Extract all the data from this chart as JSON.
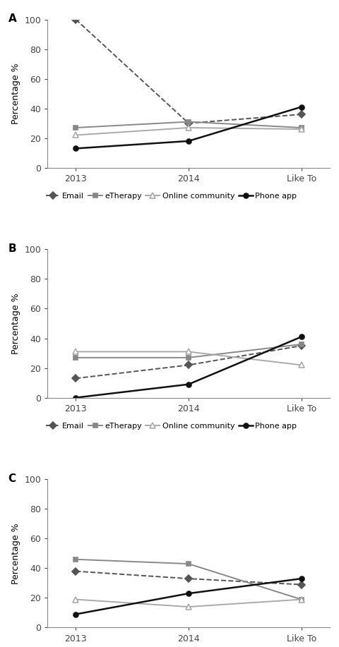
{
  "panels": [
    {
      "label": "A",
      "series": {
        "Email": [
          100,
          30,
          36
        ],
        "eTherapy": [
          27,
          31,
          27
        ],
        "Online community": [
          22,
          27,
          26
        ],
        "Phone app": [
          13,
          18,
          41
        ]
      }
    },
    {
      "label": "B",
      "series": {
        "Email": [
          13,
          22,
          35
        ],
        "eTherapy": [
          27,
          27,
          36
        ],
        "Online community": [
          31,
          31,
          22
        ],
        "Phone app": [
          0,
          9,
          41
        ]
      }
    },
    {
      "label": "C",
      "series": {
        "Email": [
          38,
          33,
          29
        ],
        "eTherapy": [
          46,
          43,
          19
        ],
        "Online community": [
          19,
          14,
          19
        ],
        "Phone app": [
          9,
          23,
          33
        ]
      }
    }
  ],
  "x_labels": [
    "2013",
    "2014",
    "Like To"
  ],
  "x_positions": [
    0,
    1,
    2
  ],
  "ylim": [
    0,
    100
  ],
  "yticks": [
    0,
    20,
    40,
    60,
    80,
    100
  ],
  "ylabel": "Percentage %",
  "series_styles": {
    "Email": {
      "color": "#555555",
      "linestyle": "--",
      "marker": "D",
      "markersize": 5,
      "linewidth": 1.4
    },
    "eTherapy": {
      "color": "#888888",
      "linestyle": "-",
      "marker": "s",
      "markersize": 5,
      "linewidth": 1.4
    },
    "Online community": {
      "color": "#aaaaaa",
      "linestyle": "-",
      "marker": "^",
      "markersize": 6,
      "linewidth": 1.4
    },
    "Phone app": {
      "color": "#111111",
      "linestyle": "-",
      "marker": "o",
      "markersize": 5,
      "linewidth": 1.8
    }
  },
  "background_color": "#ffffff",
  "legend_entries": [
    "Email",
    "eTherapy",
    "Online community",
    "Phone app"
  ],
  "panel_label_fontsize": 11,
  "axis_fontsize": 9,
  "tick_fontsize": 9,
  "legend_fontsize": 8
}
